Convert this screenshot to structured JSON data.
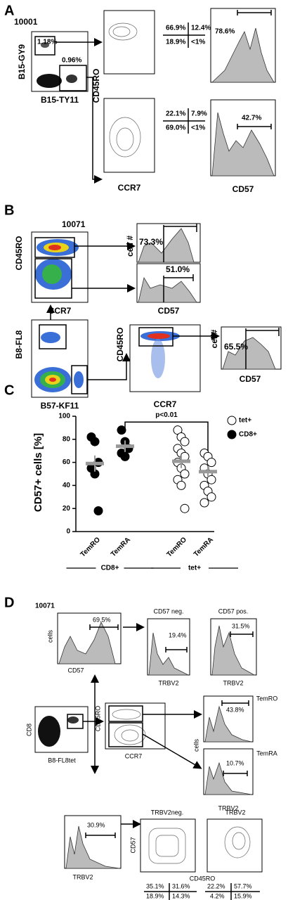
{
  "panel_a": {
    "label": "A",
    "sample": "10001",
    "gate_tet1": "1.18%",
    "gate_tet2": "0.96%",
    "x_axis": "B15-TY11",
    "y_axis": "B15-GY9",
    "contour_y": "CD45RO",
    "contour_x": "CCR7",
    "quadrants_top": [
      "66.9%",
      "12.4%",
      "18.9%",
      "<1%"
    ],
    "quadrants_bottom": [
      "22.1%",
      "7.9%",
      "69.0%",
      "<1%"
    ],
    "hist_top": "78.6%",
    "hist_bottom": "42.7%",
    "hist_x": "CD57"
  },
  "panel_b": {
    "label": "B",
    "sample": "10071",
    "top_y": "CD45RO",
    "top_x": "CCR7",
    "hist_y": "cell #",
    "hist_top": "73.3%",
    "hist_bottom": "51.0%",
    "hist_x": "CD57",
    "tet_y": "B8-FL8",
    "tet_x": "B57-KF11",
    "contour_y": "CD45RO",
    "contour_x": "CCR7",
    "hist2_y": "cell#",
    "hist2": "65.5%",
    "hist2_x": "CD57"
  },
  "panel_c": {
    "label": "C"
  },
  "chart_data": {
    "type": "dot",
    "y_label": "CD57+ cells [%]",
    "categories": [
      "TemRO",
      "TemRA",
      "TemRO",
      "TemRA"
    ],
    "groups": [
      "CD8+",
      "tet+"
    ],
    "annotation": "p<0.01",
    "ylim": [
      0,
      100
    ],
    "yticks": [
      0,
      20,
      40,
      60,
      80,
      100
    ],
    "legend": "right",
    "mean_color": "#999999",
    "series": [
      {
        "name": "tet+",
        "fill": "#ffffff",
        "stroke": "#000000",
        "values": [
          null,
          null,
          [
            88,
            82,
            78,
            72,
            68,
            65,
            60,
            55,
            50,
            45,
            40,
            20
          ],
          [
            68,
            65,
            60,
            55,
            50,
            45,
            40,
            35,
            30,
            25
          ]
        ],
        "means": [
          null,
          null,
          61,
          52
        ],
        "errors": [
          null,
          null,
          6,
          5
        ]
      },
      {
        "name": "CD8+",
        "fill": "#000000",
        "stroke": "#000000",
        "values": [
          [
            82,
            78,
            60,
            55,
            50,
            18
          ],
          [
            88,
            78,
            72,
            68,
            65
          ],
          null,
          null
        ],
        "means": [
          59,
          74,
          null,
          null
        ],
        "errors": [
          7,
          5,
          null,
          null
        ]
      }
    ]
  },
  "panel_d": {
    "label": "D",
    "sample": "10071",
    "hist_y": "cells",
    "hist_gate": "69.5%",
    "hist_x": "CD57",
    "neg_title": "CD57 neg.",
    "neg_gate": "19.4%",
    "neg_x": "TRBV2",
    "pos_title": "CD57 pos.",
    "pos_gate": "31.5%",
    "pos_x": "TRBV2",
    "tet_y": "CD8",
    "tet_x": "B8-FL8tet",
    "contour_y": "CD45RO",
    "contour_x": "CCR7",
    "temro_gate": "43.8%",
    "temro": "TemRO",
    "temra_gate": "10.7%",
    "temra": "TemRA",
    "tem_y": "cells",
    "tem_x": "TRBV2",
    "trbv_gate": "30.9%",
    "trbv_x": "TRBV2",
    "neg2_title": "TRBV2neg.",
    "pos2_title": "TRBV2",
    "contour2_y": "CD57",
    "contour2_x": "CD45RO",
    "quadrants_neg": [
      "35.1%",
      "31.6%",
      "18.9%",
      "14.3%"
    ],
    "quadrants_pos": [
      "22.2%",
      "57.7%",
      "4.2%",
      "15.9%"
    ]
  }
}
